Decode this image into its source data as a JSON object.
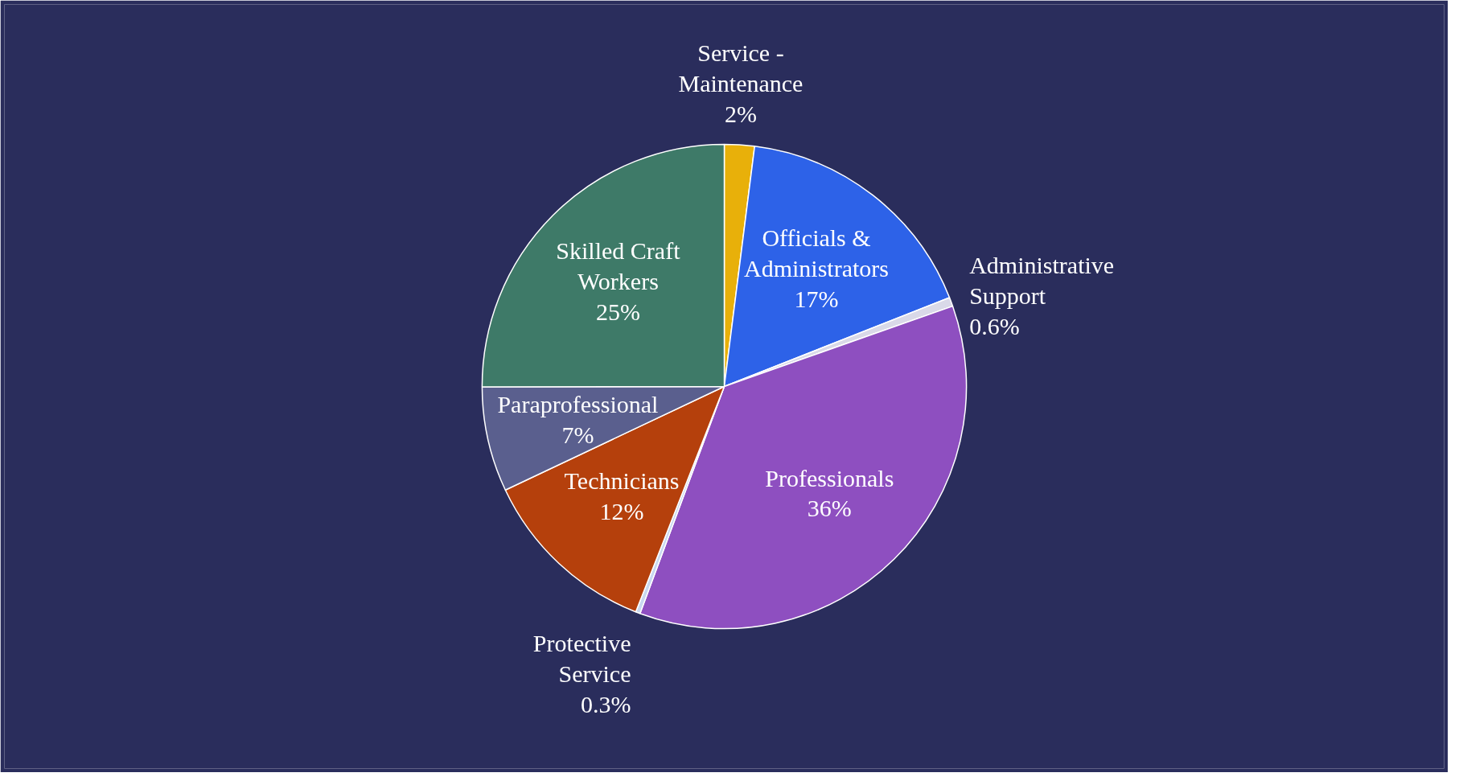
{
  "chart_data": {
    "type": "pie",
    "categories": [
      "Service - Maintenance",
      "Officials & Administrators",
      "Administrative Support",
      "Professionals",
      "Protective Service",
      "Technicians",
      "Paraprofessional",
      "Skilled Craft Workers"
    ],
    "values": [
      2,
      17,
      0.6,
      36,
      0.3,
      12,
      7,
      25
    ],
    "value_labels": [
      "2%",
      "17%",
      "0.6%",
      "36%",
      "0.3%",
      "12%",
      "7%",
      "25%"
    ],
    "colors": [
      "#e8b00a",
      "#2d62e8",
      "#d9d9e8",
      "#8e4fc0",
      "#c8d8f0",
      "#b5400c",
      "#5a5f8e",
      "#3e7a68"
    ]
  }
}
